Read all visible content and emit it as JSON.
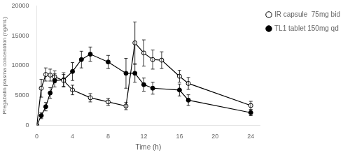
{
  "chart_data": {
    "type": "line",
    "xlabel": "Time (h)",
    "ylabel": "Pregabalin plasma concentrion (ng/mL)",
    "xlim": [
      0,
      25
    ],
    "ylim": [
      0,
      20000
    ],
    "xticks": [
      0,
      4,
      8,
      12,
      16,
      20,
      24
    ],
    "yticks": [
      0,
      5000,
      10000,
      15000,
      20000
    ],
    "grid": false,
    "legend": "upper right",
    "series": [
      {
        "name": "IR capsule  75mg bid",
        "color": "black",
        "marker": "open_circle",
        "line_style": "solid",
        "x": [
          0,
          0.5,
          1,
          1.5,
          2,
          3,
          4,
          6,
          8,
          10,
          11,
          12,
          13,
          14,
          16,
          17,
          24
        ],
        "values": [
          0,
          6200,
          8500,
          8400,
          8100,
          7500,
          5900,
          4600,
          3900,
          3200,
          13800,
          12100,
          11000,
          10900,
          8200,
          7000,
          3300
        ],
        "errors": [
          0,
          1500,
          1100,
          1000,
          1000,
          1000,
          800,
          700,
          600,
          600,
          3500,
          2200,
          1600,
          1400,
          1000,
          1000,
          700
        ]
      },
      {
        "name": "TL1 tablet 150mg qd",
        "color": "black",
        "marker": "circle",
        "line_style": "solid",
        "x": [
          0,
          0.5,
          1,
          1.5,
          2,
          3,
          4,
          5,
          6,
          8,
          10,
          11,
          12,
          13,
          16,
          17,
          24
        ],
        "values": [
          0,
          1600,
          3100,
          5400,
          7500,
          7600,
          9000,
          11000,
          11900,
          10600,
          8700,
          8700,
          6800,
          6200,
          5900,
          4200,
          2100
        ],
        "errors": [
          0,
          500,
          700,
          900,
          1100,
          1200,
          1500,
          1400,
          1200,
          1100,
          2500,
          1500,
          1100,
          1000,
          1000,
          900,
          500
        ]
      }
    ]
  }
}
